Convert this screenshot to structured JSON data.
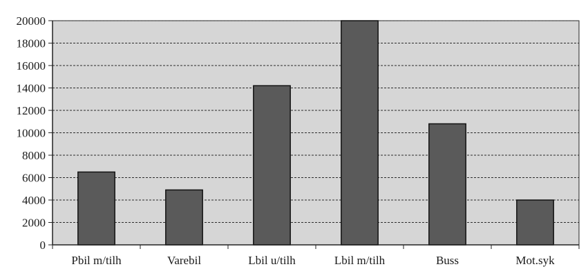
{
  "chart_data": {
    "type": "bar",
    "title": "",
    "xlabel": "",
    "ylabel": "",
    "categories": [
      "Pbil m/tilh",
      "Varebil",
      "Lbil u/tilh",
      "Lbil m/tilh",
      "Buss",
      "Mot.syk"
    ],
    "values": [
      6500,
      4900,
      14200,
      20000,
      10800,
      4000
    ],
    "ylim": [
      0,
      20000
    ],
    "yticks": [
      0,
      2000,
      4000,
      6000,
      8000,
      10000,
      12000,
      14000,
      16000,
      18000,
      20000
    ],
    "grid": true,
    "legend": "none",
    "colors": {
      "bar": "#5a5a5a",
      "bar_stroke": "#111111",
      "plot_bg": "#d6d6d6",
      "grid": "#2a2a2a",
      "axis": "#222222"
    }
  }
}
